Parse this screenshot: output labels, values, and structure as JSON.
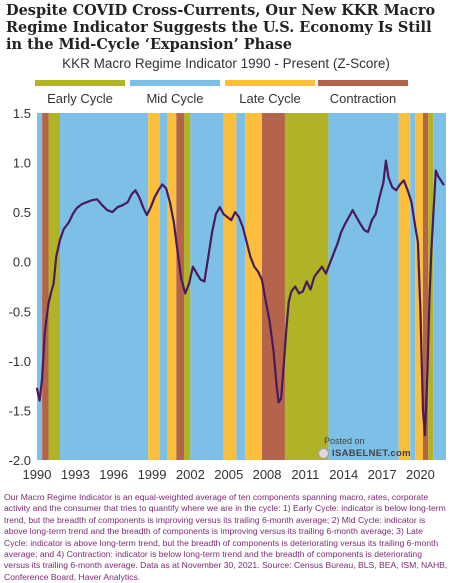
{
  "title": "Despite COVID Cross-Currents, Our New KKR Macro Regime Indicator Suggests the U.S. Economy Is Still in the Mid-Cycle ‘Expansion’ Phase",
  "subtitle": "KKR Macro Regime Indicator 1990 - Present (Z-Score)",
  "legend": [
    {
      "label": "Early Cycle",
      "color": "#b1b327"
    },
    {
      "label": "Mid Cycle",
      "color": "#7cc0e8"
    },
    {
      "label": "Late Cycle",
      "color": "#fbbf3b"
    },
    {
      "label": "Contraction",
      "color": "#b4644a"
    }
  ],
  "watermark": {
    "posted": "Posted on",
    "site": "ISABELNET.com"
  },
  "footnote": "Our Macro Regime Indicator is an equal-weighted average of ten components spanning macro, rates, corporate activity and the consumer that tries to quantify where we are in the cycle: 1) Early Cycle: indicator is below long-term trend, but the breadth of components is improving versus its trailing 6-month average; 2) Mid Cycle: indicator is above long-term trend and the breadth of components is improving versus its trailing 6-month average; 3) Late Cycle: indicator is above long-term trend, but the breadth of components is deteriorating versus its trailing 6-month average; and 4) Contraction: indicator is below long-term trend and the breadth of components is deteriorating versus its trailing 6-month average. Data as at November 30, 2021. Source: Census Bureau, BLS, BEA, ISM, NAHB, Conference Board, Haver Analytics.",
  "chart_data": {
    "type": "line",
    "title": "KKR Macro Regime Indicator 1990 - Present (Z-Score)",
    "xlim": [
      1990,
      2022
    ],
    "ylim": [
      -2.0,
      1.5
    ],
    "yticks": [
      "1.5",
      "1.0",
      "0.5",
      "0.0",
      "-0.5",
      "-1.0",
      "-1.5",
      "-2.0"
    ],
    "xticks": [
      "1990",
      "1993",
      "1996",
      "1999",
      "2002",
      "2005",
      "2008",
      "2011",
      "2014",
      "2017",
      "2020"
    ],
    "line_color": "#4a1b5a",
    "regimes": [
      {
        "start": 1989.7,
        "end": 1990.4,
        "regime": "Mid Cycle"
      },
      {
        "start": 1990.4,
        "end": 1990.9,
        "regime": "Contraction"
      },
      {
        "start": 1990.9,
        "end": 1991.8,
        "regime": "Early Cycle"
      },
      {
        "start": 1991.8,
        "end": 1998.7,
        "regime": "Mid Cycle"
      },
      {
        "start": 1998.7,
        "end": 1999.6,
        "regime": "Late Cycle"
      },
      {
        "start": 1999.6,
        "end": 2000.2,
        "regime": "Mid Cycle"
      },
      {
        "start": 2000.2,
        "end": 2000.9,
        "regime": "Late Cycle"
      },
      {
        "start": 2000.9,
        "end": 2001.5,
        "regime": "Contraction"
      },
      {
        "start": 2001.5,
        "end": 2002.0,
        "regime": "Early Cycle"
      },
      {
        "start": 2002.0,
        "end": 2004.6,
        "regime": "Mid Cycle"
      },
      {
        "start": 2004.6,
        "end": 2005.6,
        "regime": "Late Cycle"
      },
      {
        "start": 2005.6,
        "end": 2006.3,
        "regime": "Mid Cycle"
      },
      {
        "start": 2006.3,
        "end": 2007.6,
        "regime": "Late Cycle"
      },
      {
        "start": 2007.6,
        "end": 2009.4,
        "regime": "Contraction"
      },
      {
        "start": 2009.4,
        "end": 2012.8,
        "regime": "Early Cycle"
      },
      {
        "start": 2012.8,
        "end": 2018.3,
        "regime": "Mid Cycle"
      },
      {
        "start": 2018.3,
        "end": 2019.2,
        "regime": "Late Cycle"
      },
      {
        "start": 2019.2,
        "end": 2019.6,
        "regime": "Mid Cycle"
      },
      {
        "start": 2019.6,
        "end": 2020.2,
        "regime": "Late Cycle"
      },
      {
        "start": 2020.2,
        "end": 2020.6,
        "regime": "Contraction"
      },
      {
        "start": 2020.6,
        "end": 2021.0,
        "regime": "Early Cycle"
      },
      {
        "start": 2021.0,
        "end": 2022.0,
        "regime": "Mid Cycle"
      }
    ],
    "series": [
      {
        "values": [
          [
            1990.0,
            -1.28
          ],
          [
            1990.2,
            -1.4
          ],
          [
            1990.4,
            -1.18
          ],
          [
            1990.6,
            -0.72
          ],
          [
            1990.9,
            -0.42
          ],
          [
            1991.1,
            -0.31
          ],
          [
            1991.3,
            -0.22
          ],
          [
            1991.5,
            0.05
          ],
          [
            1991.8,
            0.22
          ],
          [
            1992.1,
            0.33
          ],
          [
            1992.5,
            0.4
          ],
          [
            1992.8,
            0.48
          ],
          [
            1993.1,
            0.54
          ],
          [
            1993.5,
            0.58
          ],
          [
            1993.9,
            0.6
          ],
          [
            1994.3,
            0.62
          ],
          [
            1994.7,
            0.63
          ],
          [
            1995.1,
            0.57
          ],
          [
            1995.5,
            0.52
          ],
          [
            1995.9,
            0.5
          ],
          [
            1996.3,
            0.55
          ],
          [
            1996.7,
            0.57
          ],
          [
            1997.1,
            0.6
          ],
          [
            1997.4,
            0.68
          ],
          [
            1997.7,
            0.72
          ],
          [
            1998.0,
            0.65
          ],
          [
            1998.3,
            0.55
          ],
          [
            1998.6,
            0.47
          ],
          [
            1998.9,
            0.55
          ],
          [
            1999.2,
            0.65
          ],
          [
            1999.5,
            0.72
          ],
          [
            1999.8,
            0.78
          ],
          [
            2000.1,
            0.74
          ],
          [
            2000.4,
            0.6
          ],
          [
            2000.7,
            0.4
          ],
          [
            2001.0,
            0.1
          ],
          [
            2001.3,
            -0.18
          ],
          [
            2001.6,
            -0.32
          ],
          [
            2001.9,
            -0.22
          ],
          [
            2002.2,
            -0.05
          ],
          [
            2002.5,
            -0.12
          ],
          [
            2002.8,
            -0.18
          ],
          [
            2003.1,
            -0.2
          ],
          [
            2003.4,
            0.05
          ],
          [
            2003.7,
            0.3
          ],
          [
            2004.0,
            0.48
          ],
          [
            2004.3,
            0.55
          ],
          [
            2004.6,
            0.48
          ],
          [
            2004.9,
            0.45
          ],
          [
            2005.2,
            0.42
          ],
          [
            2005.5,
            0.5
          ],
          [
            2005.8,
            0.45
          ],
          [
            2006.1,
            0.35
          ],
          [
            2006.4,
            0.2
          ],
          [
            2006.7,
            0.05
          ],
          [
            2007.0,
            -0.05
          ],
          [
            2007.3,
            -0.1
          ],
          [
            2007.6,
            -0.18
          ],
          [
            2007.9,
            -0.4
          ],
          [
            2008.2,
            -0.6
          ],
          [
            2008.5,
            -0.9
          ],
          [
            2008.75,
            -1.25
          ],
          [
            2008.9,
            -1.42
          ],
          [
            2009.1,
            -1.38
          ],
          [
            2009.3,
            -1.05
          ],
          [
            2009.5,
            -0.7
          ],
          [
            2009.7,
            -0.4
          ],
          [
            2009.9,
            -0.3
          ],
          [
            2010.2,
            -0.25
          ],
          [
            2010.5,
            -0.32
          ],
          [
            2010.8,
            -0.3
          ],
          [
            2011.1,
            -0.2
          ],
          [
            2011.4,
            -0.28
          ],
          [
            2011.7,
            -0.15
          ],
          [
            2012.0,
            -0.1
          ],
          [
            2012.3,
            -0.05
          ],
          [
            2012.6,
            -0.12
          ],
          [
            2012.9,
            -0.02
          ],
          [
            2013.2,
            0.08
          ],
          [
            2013.5,
            0.18
          ],
          [
            2013.8,
            0.3
          ],
          [
            2014.1,
            0.38
          ],
          [
            2014.4,
            0.45
          ],
          [
            2014.7,
            0.52
          ],
          [
            2015.0,
            0.45
          ],
          [
            2015.3,
            0.38
          ],
          [
            2015.6,
            0.32
          ],
          [
            2015.9,
            0.3
          ],
          [
            2016.2,
            0.42
          ],
          [
            2016.5,
            0.48
          ],
          [
            2016.8,
            0.65
          ],
          [
            2017.1,
            0.8
          ],
          [
            2017.3,
            1.02
          ],
          [
            2017.5,
            0.85
          ],
          [
            2017.8,
            0.75
          ],
          [
            2018.1,
            0.72
          ],
          [
            2018.4,
            0.78
          ],
          [
            2018.7,
            0.82
          ],
          [
            2019.0,
            0.72
          ],
          [
            2019.3,
            0.6
          ],
          [
            2019.6,
            0.35
          ],
          [
            2019.8,
            0.2
          ],
          [
            2020.0,
            -0.5
          ],
          [
            2020.2,
            -1.5
          ],
          [
            2020.35,
            -1.75
          ],
          [
            2020.55,
            -1.1
          ],
          [
            2020.7,
            -0.4
          ],
          [
            2020.85,
            0.1
          ],
          [
            2021.0,
            0.45
          ],
          [
            2021.2,
            0.92
          ],
          [
            2021.4,
            0.86
          ],
          [
            2021.6,
            0.82
          ],
          [
            2021.8,
            0.78
          ]
        ]
      }
    ]
  }
}
